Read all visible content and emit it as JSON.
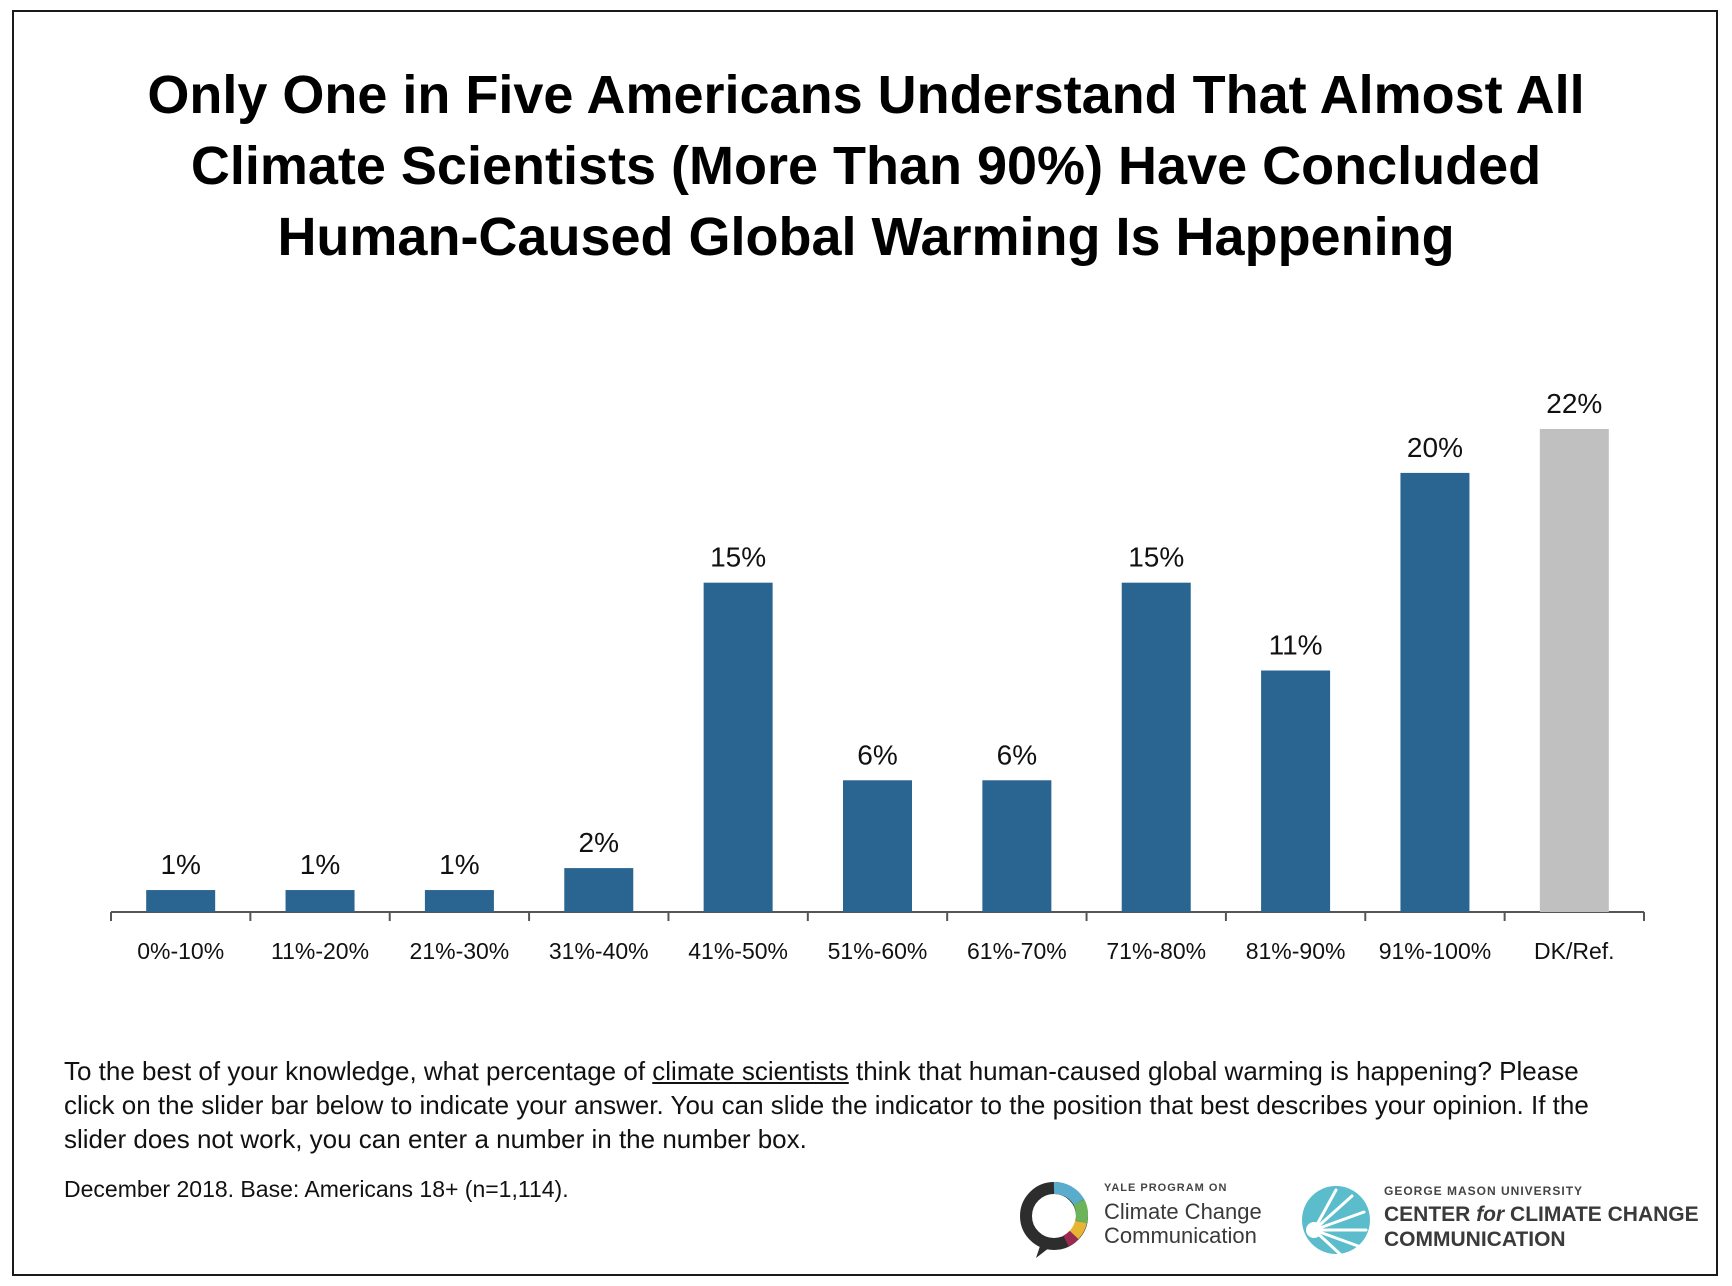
{
  "title_lines": [
    "Only One in Five Americans Understand That Almost All",
    "Climate Scientists (More Than 90%) Have Concluded",
    "Human-Caused Global Warming Is Happening"
  ],
  "chart_data": {
    "type": "bar",
    "title": "Only One in Five Americans Understand That Almost All Climate Scientists (More Than 90%) Have Concluded Human-Caused Global Warming Is Happening",
    "categories": [
      "0%-10%",
      "11%-20%",
      "21%-30%",
      "31%-40%",
      "41%-50%",
      "51%-60%",
      "61%-70%",
      "71%-80%",
      "81%-90%",
      "91%-100%",
      "DK/Ref."
    ],
    "values": [
      1,
      1,
      1,
      2,
      15,
      6,
      6,
      15,
      11,
      20,
      22
    ],
    "value_labels": [
      "1%",
      "1%",
      "1%",
      "2%",
      "15%",
      "6%",
      "6%",
      "15%",
      "11%",
      "20%",
      "22%"
    ],
    "unit": "%",
    "ylim": [
      0,
      22
    ],
    "grid": false,
    "xlabel": "",
    "ylabel": "",
    "colors": {
      "bar": "#2a6592",
      "highlight_bar": "#c0c0c0",
      "axis": "#555555"
    }
  },
  "question": {
    "before": "To the best of your knowledge, what percentage of ",
    "underlined": "climate scientists",
    "after": " think that human-caused global warming is happening? Please click on the slider bar below to indicate your answer. You can slide the indicator to the position that best describes your opinion. If the slider does not work, you can enter a number in the number box."
  },
  "source": "December 2018. Base: Americans 18+ (n=1,114).",
  "logos": {
    "yale": {
      "icon": "speech-bubble-ring-icon",
      "small": "YALE PROGRAM ON",
      "line1": "Climate Change",
      "line2": "Communication"
    },
    "gmu": {
      "icon": "sunburst-circle-icon",
      "small": "GEORGE MASON UNIVERSITY",
      "line1_a": "CENTER ",
      "line1_b": "for",
      "line1_c": " CLIMATE CHANGE",
      "line2": "COMMUNICATION"
    }
  }
}
